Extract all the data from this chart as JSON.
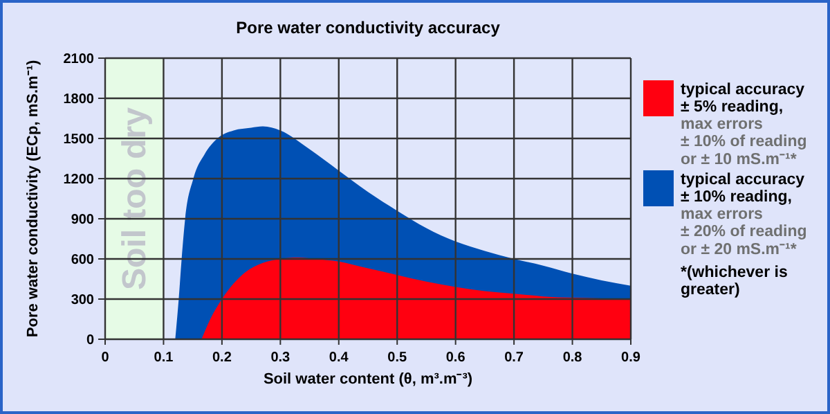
{
  "chart_data": {
    "type": "area",
    "title": "Pore water conductivity accuracy",
    "xlabel": "Soil water content (θ, m³.m⁻³)",
    "ylabel": "Pore water conductivity (ECp, mS.m⁻¹)",
    "xlim": [
      0,
      0.9
    ],
    "ylim": [
      0,
      2100
    ],
    "xticks": [
      0,
      0.1,
      0.2,
      0.3,
      0.4,
      0.5,
      0.6,
      0.7,
      0.8,
      0.9
    ],
    "yticks": [
      0,
      300,
      600,
      900,
      1200,
      1500,
      1800,
      2100
    ],
    "grid": true,
    "legend": "right",
    "bands": [
      {
        "axis": "x",
        "from": 0,
        "to": 0.1,
        "label": "Soil too dry",
        "color": "#e6fbe6"
      }
    ],
    "series": [
      {
        "name": "typical accuracy\n± 10% reading,",
        "color": "#0050b4",
        "x": [
          0.12,
          0.126,
          0.131,
          0.137,
          0.151,
          0.17,
          0.192,
          0.22,
          0.25,
          0.27,
          0.3,
          0.35,
          0.4,
          0.45,
          0.5,
          0.55,
          0.6,
          0.65,
          0.7,
          0.75,
          0.8,
          0.85,
          0.9
        ],
        "values": [
          0,
          300,
          600,
          900,
          1200,
          1380,
          1500,
          1560,
          1580,
          1590,
          1560,
          1420,
          1260,
          1100,
          960,
          830,
          730,
          660,
          600,
          550,
          490,
          440,
          400
        ]
      },
      {
        "name": "typical accuracy\n± 5% reading,",
        "color": "#ff0010",
        "x": [
          0.165,
          0.18,
          0.2,
          0.24,
          0.27,
          0.3,
          0.33,
          0.36,
          0.4,
          0.45,
          0.5,
          0.55,
          0.6,
          0.65,
          0.7,
          0.75,
          0.8,
          0.85,
          0.9
        ],
        "values": [
          0,
          150,
          300,
          500,
          570,
          600,
          610,
          600,
          580,
          530,
          480,
          430,
          390,
          360,
          340,
          320,
          310,
          305,
          300
        ]
      }
    ],
    "annotations": [
      "max errors\n± 20% of reading\nor ± 20 mS.m⁻¹*",
      "max errors\n± 10% of reading\nor ± 10 mS.m⁻¹*",
      "*(whichever is\ngreater)"
    ]
  }
}
